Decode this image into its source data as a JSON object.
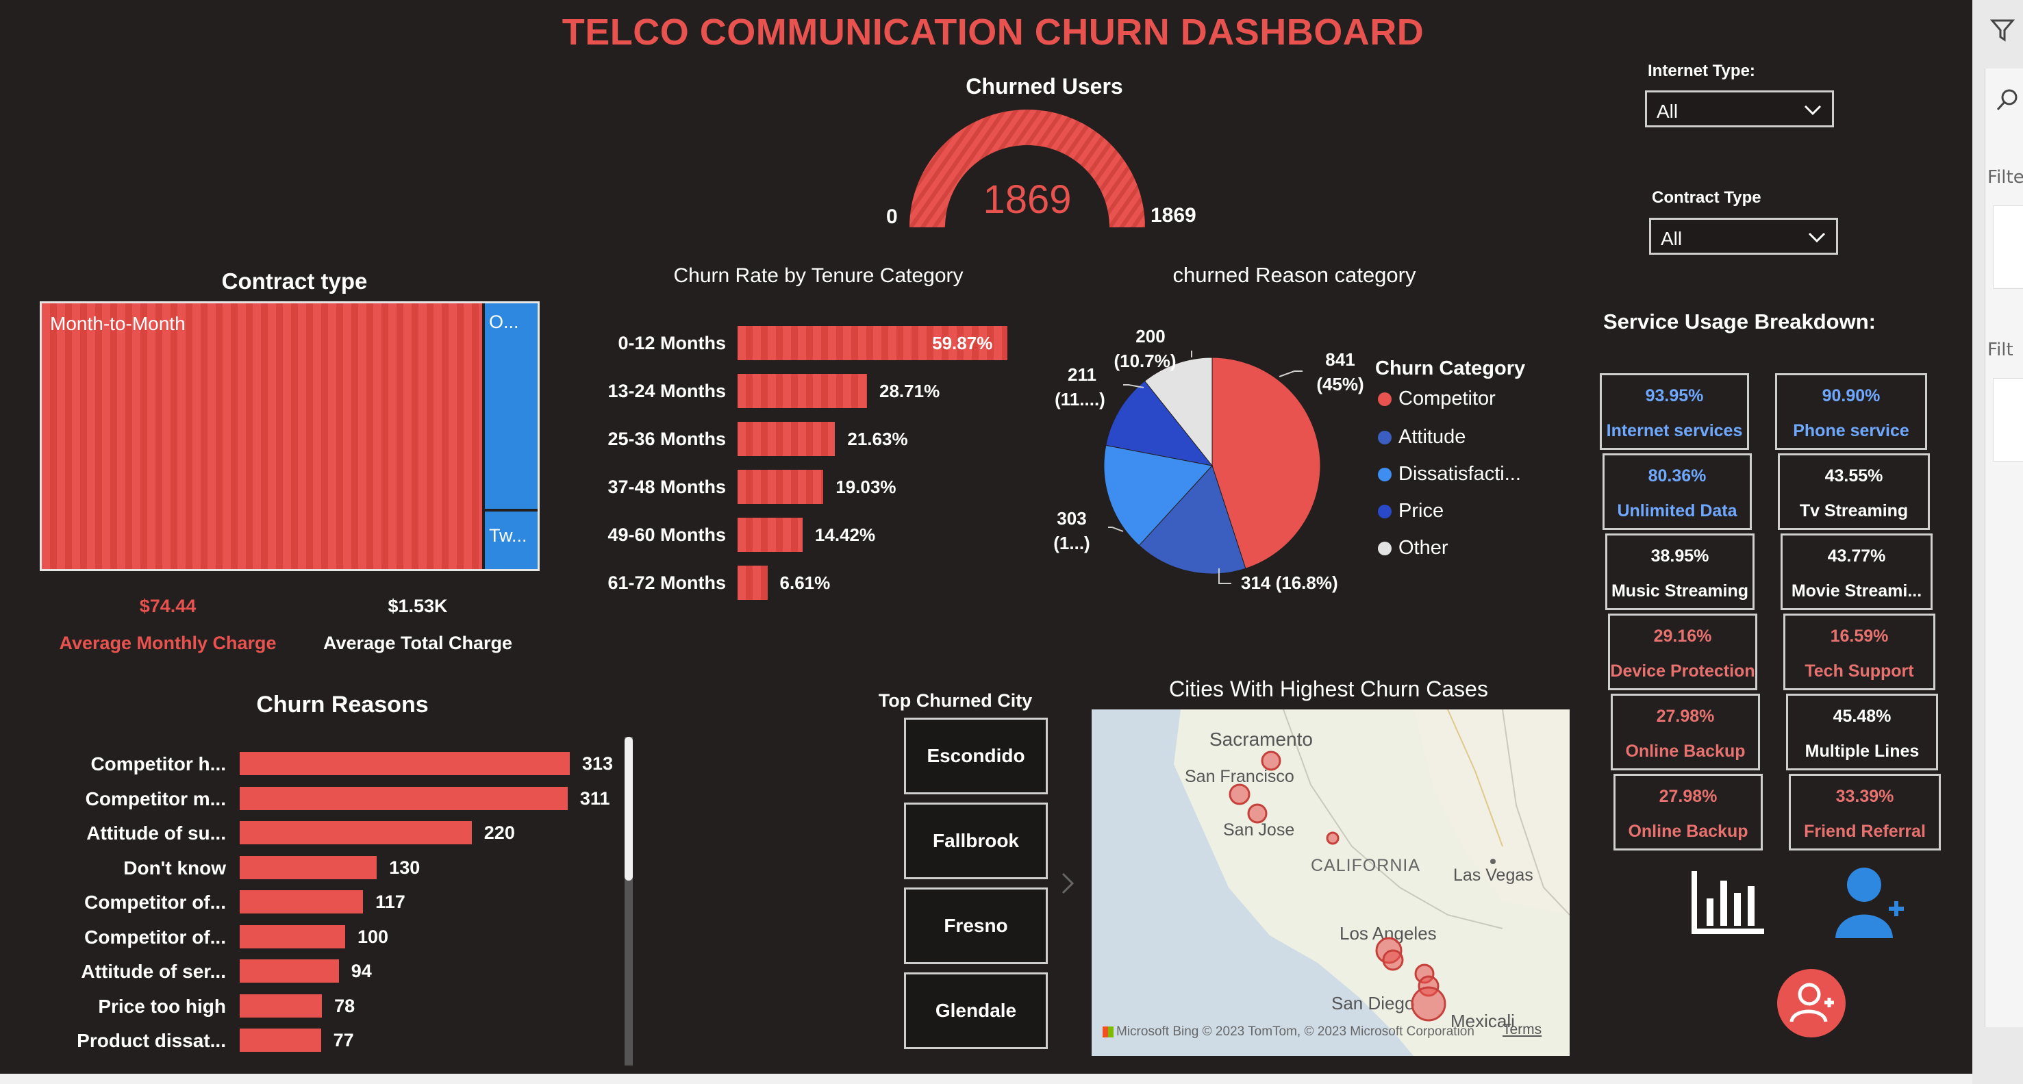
{
  "dashboard": {
    "title": "TELCO COMMUNICATION CHURN DASHBOARD"
  },
  "gauge": {
    "title": "Churned Users",
    "value": "1869",
    "min": "0",
    "max": "1869",
    "fill_fraction": 1.0
  },
  "filters": {
    "internet_type": {
      "label": "Internet Type:",
      "value": "All"
    },
    "contract_type": {
      "label": "Contract Type",
      "value": "All"
    }
  },
  "contract": {
    "title": "Contract type",
    "labels": [
      "Month-to-Month",
      "O...",
      "Tw..."
    ],
    "avg_monthly_value": "$74.44",
    "avg_monthly_label": "Average Monthly Charge",
    "avg_total_value": "$1.53K",
    "avg_total_label": "Average Total Charge"
  },
  "tenure_chart": {
    "title": "Churn Rate by Tenure Category",
    "chart_data": {
      "type": "bar",
      "categories": [
        "0-12 Months",
        "13-24 Months",
        "25-36 Months",
        "37-48 Months",
        "49-60 Months",
        "61-72 Months"
      ],
      "values": [
        59.87,
        28.71,
        21.63,
        19.03,
        14.42,
        6.61
      ],
      "value_labels": [
        "59.87%",
        "28.71%",
        "21.63%",
        "19.03%",
        "14.42%",
        "6.61%"
      ]
    }
  },
  "reason_category": {
    "title": "churned Reason category",
    "legend_title": "Churn Category",
    "legend": [
      "Competitor",
      "Attitude",
      "Dissatisfacti...",
      "Price",
      "Other"
    ],
    "slice_labels": {
      "competitor_value": "841",
      "competitor_pct": "(45%)",
      "attitude": "314 (16.8%)",
      "dissatisfaction_value": "303",
      "dissatisfaction_pct": "(1...)",
      "price_value": "211",
      "price_pct": "(11....)",
      "other_value": "200",
      "other_pct": "(10.7%)"
    },
    "colors": {
      "competitor": "#e8524f",
      "attitude": "#3a5fc0",
      "dissatisfaction": "#3d8ef0",
      "price": "#2a49c9",
      "other": "#e3e3e3"
    },
    "chart_data": {
      "type": "pie",
      "categories": [
        "Competitor",
        "Attitude",
        "Dissatisfaction",
        "Price",
        "Other"
      ],
      "values": [
        841,
        314,
        303,
        211,
        200
      ]
    }
  },
  "service_usage": {
    "title": "Service Usage Breakdown:",
    "tiles": [
      {
        "value": "93.95%",
        "label": "Internet services",
        "value_color": "#6fa8ff",
        "label_color": "#6fa8ff"
      },
      {
        "value": "90.90%",
        "label": "Phone service",
        "value_color": "#6fa8ff",
        "label_color": "#6fa8ff"
      },
      {
        "value": "80.36%",
        "label": "Unlimited Data",
        "value_color": "#6fa8ff",
        "label_color": "#6fa8ff"
      },
      {
        "value": "43.55%",
        "label": "Tv Streaming",
        "value_color": "#ffffff",
        "label_color": "#ffffff"
      },
      {
        "value": "38.95%",
        "label": "Music Streaming",
        "value_color": "#ffffff",
        "label_color": "#ffffff"
      },
      {
        "value": "43.77%",
        "label": "Movie Streami...",
        "value_color": "#ffffff",
        "label_color": "#ffffff"
      },
      {
        "value": "29.16%",
        "label": "Device Protection",
        "value_color": "#e8726f",
        "label_color": "#e8726f"
      },
      {
        "value": "16.59%",
        "label": "Tech Support",
        "value_color": "#e8726f",
        "label_color": "#e8726f"
      },
      {
        "value": "27.98%",
        "label": "Online Backup",
        "value_color": "#e8726f",
        "label_color": "#e8726f"
      },
      {
        "value": "45.48%",
        "label": "Multiple Lines",
        "value_color": "#ffffff",
        "label_color": "#ffffff"
      },
      {
        "value": "27.98%",
        "label": "Online Backup",
        "value_color": "#e8726f",
        "label_color": "#e8726f"
      },
      {
        "value": "33.39%",
        "label": "Friend Referral",
        "value_color": "#e8726f",
        "label_color": "#e8726f"
      }
    ]
  },
  "reasons": {
    "title": "Churn Reasons",
    "chart_data": {
      "type": "bar",
      "categories": [
        "Competitor h...",
        "Competitor m...",
        "Attitude of su...",
        "Don't know",
        "Competitor of...",
        "Competitor of...",
        "Attitude of ser...",
        "Price too high",
        "Product dissat..."
      ],
      "values": [
        313,
        311,
        220,
        130,
        117,
        100,
        94,
        78,
        77
      ]
    }
  },
  "top_city": {
    "title": "Top Churned City",
    "cities": [
      "Escondido",
      "Fallbrook",
      "Fresno",
      "Glendale"
    ]
  },
  "map": {
    "title": "Cities With Highest Churn Cases",
    "places": [
      "Sacramento",
      "San Francisco",
      "San Jose",
      "CALIFORNIA",
      "Las Vegas",
      "Los Angeles",
      "San Diego",
      "Mexicali"
    ],
    "attribution": "Microsoft Bing © 2023 TomTom, © 2023 Microsoft Corporation",
    "terms": "Terms"
  },
  "side_panel": {
    "filters_label": "Filte",
    "filters_label2": "Filt"
  }
}
